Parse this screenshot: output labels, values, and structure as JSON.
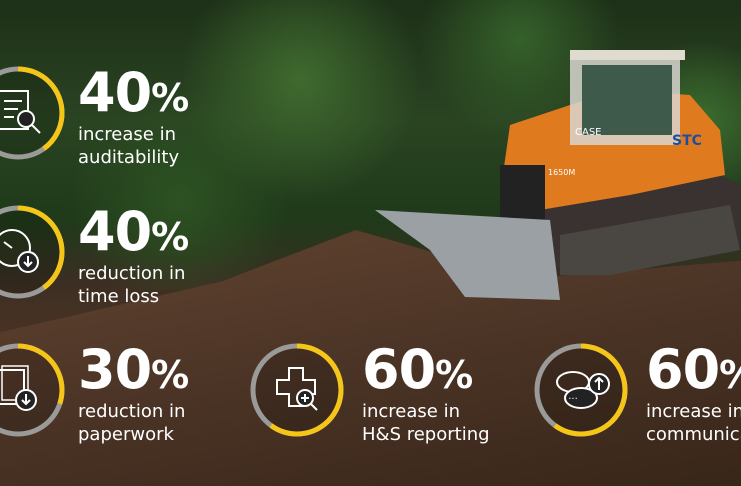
{
  "colors": {
    "accent": "#f5c518",
    "ring_rest": "#9a9a98",
    "text": "#ffffff"
  },
  "stats": [
    {
      "value": "40",
      "unit": "%",
      "line1": "increase in",
      "line2": "auditability",
      "percent": 40,
      "icon": "document-search-icon"
    },
    {
      "value": "40",
      "unit": "%",
      "line1": "reduction in",
      "line2": "time loss",
      "percent": 40,
      "icon": "clock-download-icon"
    },
    {
      "value": "30",
      "unit": "%",
      "line1": "reduction in",
      "line2": "paperwork",
      "percent": 30,
      "icon": "documents-download-icon"
    },
    {
      "value": "60",
      "unit": "%",
      "line1": "increase in",
      "line2": "H&S reporting",
      "percent": 60,
      "icon": "medical-cross-search-icon"
    },
    {
      "value": "60",
      "unit": "%",
      "line1": "increase in",
      "line2": "communicatio",
      "percent": 60,
      "icon": "chat-bubbles-upload-icon"
    }
  ],
  "photo": {
    "brand_text": "CASE",
    "model_text": "1650M",
    "logo_text": "STC"
  }
}
